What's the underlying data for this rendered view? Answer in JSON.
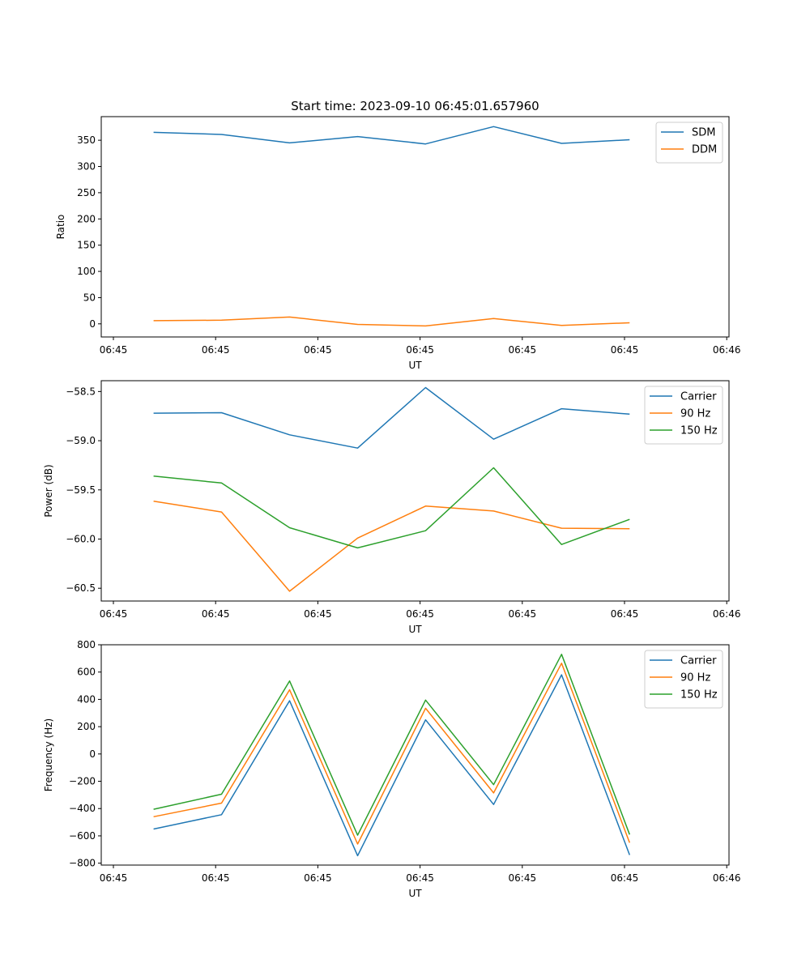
{
  "figure_title": "Start time: 2023-09-10 06:45:01.657960",
  "colors": {
    "blue": "#1f77b4",
    "orange": "#ff7f0e",
    "green": "#2ca02c"
  },
  "chart_data": [
    {
      "type": "line",
      "xlabel": "UT",
      "ylabel": "Ratio",
      "xticks": [
        "06:45",
        "06:45",
        "06:45",
        "06:45",
        "06:45",
        "06:45",
        "06:46"
      ],
      "xlim": [
        0,
        6
      ],
      "x": [
        0.5,
        1.15,
        1.8,
        2.45,
        3.1,
        3.75,
        4.4,
        5.05
      ],
      "ylim": [
        -25,
        395
      ],
      "yticks": [
        0,
        50,
        100,
        150,
        200,
        250,
        300,
        350
      ],
      "legend": "top-right",
      "series": [
        {
          "name": "SDM",
          "color": "#1f77b4",
          "values": [
            365,
            361,
            345,
            357,
            343,
            376,
            344,
            351
          ]
        },
        {
          "name": "DDM",
          "color": "#ff7f0e",
          "values": [
            6,
            7,
            13,
            -1,
            -4,
            10,
            -3,
            2
          ]
        }
      ]
    },
    {
      "type": "line",
      "xlabel": "UT",
      "ylabel": "Power (dB)",
      "xticks": [
        "06:45",
        "06:45",
        "06:45",
        "06:45",
        "06:45",
        "06:45",
        "06:46"
      ],
      "xlim": [
        0,
        6
      ],
      "x": [
        0.5,
        1.15,
        1.8,
        2.45,
        3.1,
        3.75,
        4.4,
        5.05
      ],
      "ylim": [
        -60.63,
        -58.39
      ],
      "yticks": [
        -60.5,
        -60.0,
        -59.5,
        -59.0,
        -58.5
      ],
      "legend": "top-right",
      "series": [
        {
          "name": "Carrier",
          "color": "#1f77b4",
          "values": [
            -58.72,
            -58.715,
            -58.94,
            -59.075,
            -58.46,
            -58.985,
            -58.675,
            -58.73
          ]
        },
        {
          "name": "90 Hz",
          "color": "#ff7f0e",
          "values": [
            -59.615,
            -59.725,
            -60.53,
            -59.99,
            -59.665,
            -59.715,
            -59.89,
            -59.895
          ]
        },
        {
          "name": "150 Hz",
          "color": "#2ca02c",
          "values": [
            -59.36,
            -59.43,
            -59.885,
            -60.09,
            -59.915,
            -59.275,
            -60.055,
            -59.8
          ]
        }
      ]
    },
    {
      "type": "line",
      "xlabel": "UT",
      "ylabel": "Frequency (Hz)",
      "xticks": [
        "06:45",
        "06:45",
        "06:45",
        "06:45",
        "06:45",
        "06:45",
        "06:46"
      ],
      "xlim": [
        0,
        6
      ],
      "x": [
        0.5,
        1.15,
        1.8,
        2.45,
        3.1,
        3.75,
        4.4,
        5.05
      ],
      "ylim": [
        -814,
        800
      ],
      "yticks": [
        -800,
        -600,
        -400,
        -200,
        0,
        200,
        400,
        600,
        800
      ],
      "legend": "top-right",
      "series": [
        {
          "name": "Carrier",
          "color": "#1f77b4",
          "values": [
            -550,
            -445,
            390,
            -745,
            250,
            -370,
            580,
            -740
          ]
        },
        {
          "name": "90 Hz",
          "color": "#ff7f0e",
          "values": [
            -460,
            -360,
            470,
            -660,
            335,
            -285,
            665,
            -650
          ]
        },
        {
          "name": "150 Hz",
          "color": "#2ca02c",
          "values": [
            -405,
            -295,
            535,
            -595,
            395,
            -225,
            730,
            -590
          ]
        }
      ]
    }
  ]
}
